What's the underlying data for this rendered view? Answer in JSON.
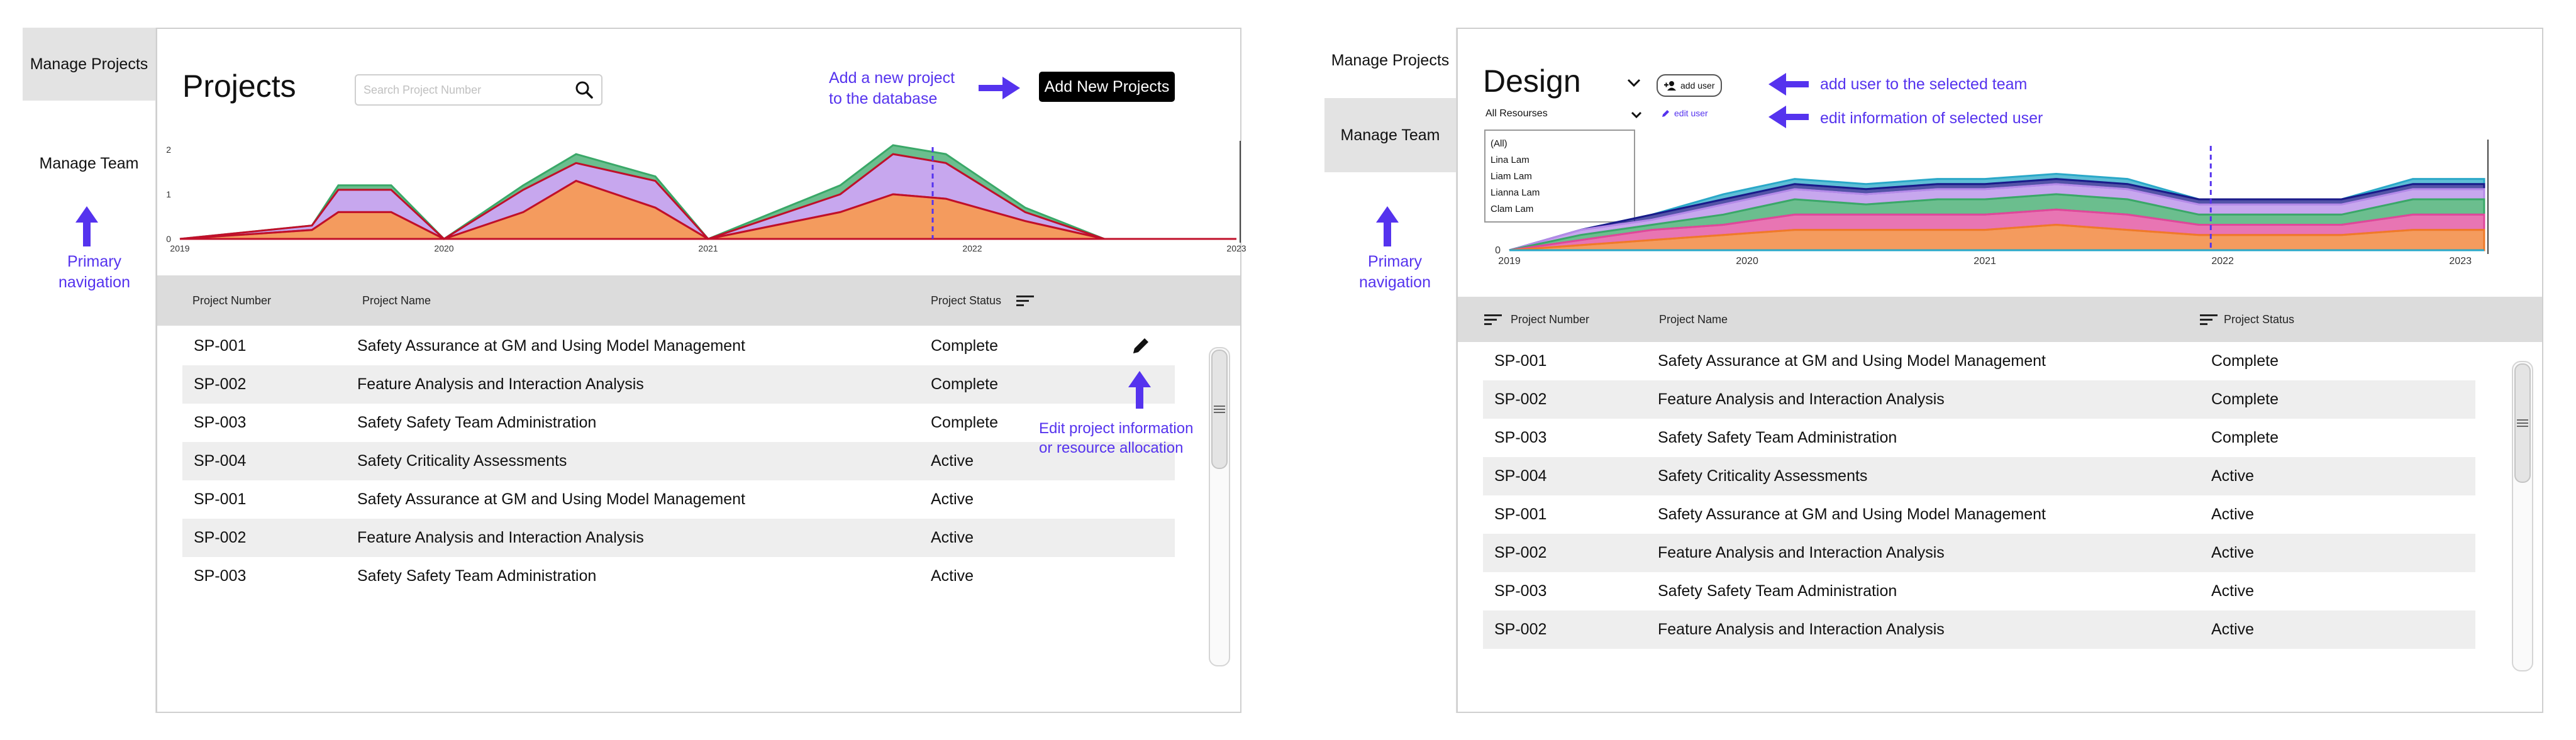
{
  "left": {
    "nav": [
      {
        "label": "Manage Projects",
        "active": true
      },
      {
        "label": "Manage Team",
        "active": false
      }
    ],
    "nav_annotation": "Primary\nnavigation",
    "title": "Projects",
    "search_placeholder": "Search Project Number",
    "add_annotation": "Add a new project\nto the database",
    "add_button": "Add New Projects",
    "edit_annotation": "Edit project information\nor resource allocation",
    "columns": [
      "Project Number",
      "Project Name",
      "Project Status"
    ],
    "rows": [
      {
        "number": "SP-001",
        "name": "Safety Assurance at GM and Using Model Management",
        "status": "Complete"
      },
      {
        "number": "SP-002",
        "name": "Feature Analysis and Interaction Analysis",
        "status": "Complete"
      },
      {
        "number": "SP-003",
        "name": "Safety Safety Team Administration",
        "status": "Complete"
      },
      {
        "number": "SP-004",
        "name": "Safety Criticality Assessments",
        "status": "Active"
      },
      {
        "number": "SP-001",
        "name": "Safety Assurance at GM and Using Model Management",
        "status": "Active"
      },
      {
        "number": "SP-002",
        "name": "Feature Analysis and Interaction Analysis",
        "status": "Active"
      },
      {
        "number": "SP-003",
        "name": "Safety Safety Team Administration",
        "status": "Active"
      }
    ]
  },
  "right": {
    "nav": [
      {
        "label": "Manage Projects",
        "active": false
      },
      {
        "label": "Manage Team",
        "active": true
      }
    ],
    "nav_annotation": "Primary\nnavigation",
    "title": "Design",
    "add_user_button": "add user",
    "edit_user_link": "edit user",
    "add_annotation": "add user to the selected team",
    "edit_annotation": "edit information of selected user",
    "resource_select": "All Resourses",
    "resource_options": [
      "(All)",
      "Lina Lam",
      "Liam Lam",
      "Lianna Lam",
      "Clam Lam"
    ],
    "columns": [
      "Project Number",
      "Project Name",
      "Project Status"
    ],
    "rows": [
      {
        "number": "SP-001",
        "name": "Safety Assurance at GM and Using Model Management",
        "status": "Complete"
      },
      {
        "number": "SP-002",
        "name": "Feature Analysis and Interaction Analysis",
        "status": "Complete"
      },
      {
        "number": "SP-003",
        "name": "Safety Safety Team Administration",
        "status": "Complete"
      },
      {
        "number": "SP-004",
        "name": "Safety Criticality Assessments",
        "status": "Active"
      },
      {
        "number": "SP-001",
        "name": "Safety Assurance at GM and Using Model Management",
        "status": "Active"
      },
      {
        "number": "SP-002",
        "name": "Feature Analysis and Interaction Analysis",
        "status": "Active"
      },
      {
        "number": "SP-003",
        "name": "Safety Safety Team Administration",
        "status": "Active"
      },
      {
        "number": "SP-002",
        "name": "Feature Analysis and Interaction Analysis",
        "status": "Active"
      }
    ]
  },
  "colors": {
    "annotation": "#5533ee",
    "marker": "#5533ee",
    "button": "#000000",
    "series_red": "#c0102a",
    "series_orange": "#f07a28",
    "series_green": "#3aa868",
    "series_purple": "#b48ae8",
    "series_navy": "#1a1a8a",
    "series_pink": "#e0479a",
    "series_teal": "#2aa8c8"
  },
  "chart_data": [
    {
      "type": "area",
      "x": [
        2019.0,
        2019.5,
        2019.6,
        2019.8,
        2020.0,
        2020.3,
        2020.5,
        2020.8,
        2021.0,
        2021.5,
        2021.7,
        2021.9,
        2022.2,
        2022.5,
        2023.0
      ],
      "series": [
        {
          "values": [
            0,
            0.2,
            0.6,
            0.6,
            0,
            0.6,
            1.3,
            0.7,
            0,
            0.6,
            1.0,
            0.9,
            0.4,
            0,
            0
          ]
        },
        {
          "values": [
            0,
            0.1,
            0.5,
            0.5,
            0,
            0.5,
            0.4,
            0.6,
            0,
            0.4,
            0.9,
            0.8,
            0.2,
            0,
            0
          ]
        },
        {
          "values": [
            0,
            0,
            0.1,
            0.1,
            0,
            0.1,
            0.2,
            0.1,
            0,
            0.2,
            0.2,
            0.2,
            0.1,
            0,
            0
          ]
        }
      ],
      "xticks": [
        "2019",
        "2020",
        "2021",
        "2022",
        "2023"
      ],
      "yticks": [
        "0",
        "1",
        "2"
      ],
      "ylim": [
        0,
        2
      ],
      "marker_x": 2021.85
    },
    {
      "type": "area",
      "x": [
        2019.0,
        2019.3,
        2019.6,
        2019.9,
        2020.2,
        2020.5,
        2020.8,
        2021.0,
        2021.3,
        2021.6,
        2021.9,
        2022.2,
        2022.5,
        2022.8,
        2023.0,
        2023.1
      ],
      "series": [
        {
          "values": [
            0,
            1,
            2,
            3,
            4,
            4,
            4,
            4,
            5,
            4,
            3,
            3,
            3,
            4,
            4,
            4
          ]
        },
        {
          "values": [
            0,
            1,
            2,
            2,
            3,
            3,
            3,
            3,
            3,
            3,
            2,
            2,
            2,
            3,
            3,
            3
          ]
        },
        {
          "values": [
            0,
            1,
            1,
            2,
            3,
            2,
            3,
            3,
            3,
            3,
            2,
            2,
            2,
            3,
            3,
            3
          ]
        },
        {
          "values": [
            0,
            1,
            1,
            2,
            2,
            2,
            2,
            2,
            2,
            2,
            2,
            2,
            2,
            2,
            2,
            2
          ]
        },
        {
          "values": [
            0,
            0,
            1,
            1,
            1,
            1,
            1,
            1,
            1,
            1,
            1,
            1,
            1,
            1,
            1,
            1
          ]
        },
        {
          "values": [
            0,
            0,
            0,
            1,
            1,
            1,
            1,
            1,
            1,
            1,
            0,
            0,
            0,
            1,
            1,
            1
          ]
        }
      ],
      "xticks": [
        "2019",
        "2020",
        "2021",
        "2022",
        "2023"
      ],
      "yticks": [
        "0"
      ],
      "marker_x": 2021.95
    }
  ]
}
